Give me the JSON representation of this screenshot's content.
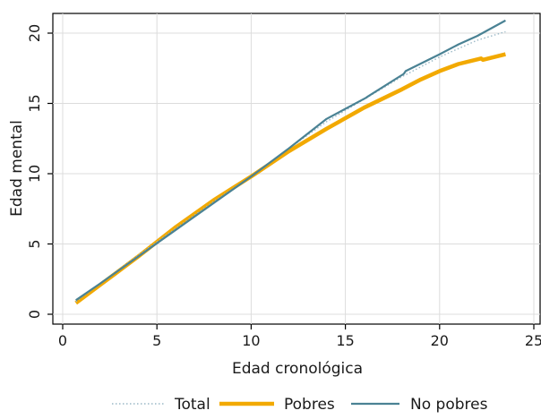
{
  "chart_data": {
    "type": "line",
    "title": "",
    "xlabel": "Edad cronológica",
    "ylabel": "Edad mental",
    "xlim": [
      0,
      25
    ],
    "ylim": [
      0,
      21
    ],
    "xticks": [
      0,
      5,
      10,
      15,
      20,
      25
    ],
    "yticks": [
      0,
      5,
      10,
      15,
      20
    ],
    "grid": true,
    "legend_position": "bottom",
    "series": [
      {
        "name": "Total",
        "color": "#9ab8c6",
        "style": "dotted",
        "x": [
          0.7,
          2,
          4,
          6,
          8,
          10,
          12,
          14,
          16,
          18,
          20,
          22,
          23.5
        ],
        "y": [
          0.9,
          2.2,
          4.2,
          6.1,
          8,
          9.8,
          11.8,
          13.7,
          15.3,
          16.9,
          18.3,
          19.5,
          20.1
        ]
      },
      {
        "name": "Pobres",
        "color": "#f2a900",
        "style": "solid-thick",
        "x": [
          0.7,
          2,
          4,
          6,
          8,
          10,
          12,
          14,
          16,
          18,
          19,
          20,
          21,
          22.2,
          22.3,
          23.5
        ],
        "y": [
          0.8,
          2.1,
          4.1,
          6.2,
          8.1,
          9.8,
          11.6,
          13.2,
          14.7,
          16,
          16.7,
          17.3,
          17.8,
          18.2,
          18.1,
          18.5
        ]
      },
      {
        "name": "No pobres",
        "color": "#4a8294",
        "style": "solid",
        "x": [
          0.7,
          2,
          4,
          6,
          8,
          10,
          12,
          14,
          16.1,
          16.2,
          18.1,
          18.2,
          20,
          21,
          22,
          23.5
        ],
        "y": [
          1.0,
          2.2,
          4.1,
          6.0,
          7.9,
          9.8,
          11.8,
          13.9,
          15.4,
          15.5,
          17.1,
          17.3,
          18.5,
          19.2,
          19.8,
          20.9
        ]
      }
    ]
  }
}
